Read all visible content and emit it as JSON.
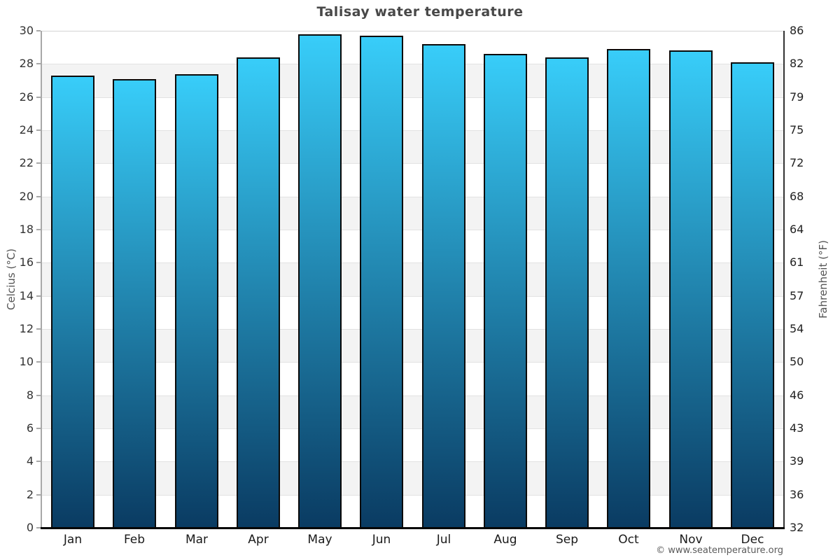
{
  "chart_data": {
    "type": "bar",
    "title": "Talisay water temperature",
    "categories": [
      "Jan",
      "Feb",
      "Mar",
      "Apr",
      "May",
      "Jun",
      "Jul",
      "Aug",
      "Sep",
      "Oct",
      "Nov",
      "Dec"
    ],
    "values": [
      27.3,
      27.1,
      27.4,
      28.4,
      29.8,
      29.7,
      29.2,
      28.6,
      28.4,
      28.9,
      28.8,
      28.1
    ],
    "unit": "°C",
    "ylabel_left": "Celcius (°C)",
    "ylabel_right": "Fahrenheit (°F)",
    "ylim": [
      0,
      30
    ],
    "ytick_step": 2,
    "yticks_celsius": [
      30,
      28,
      26,
      24,
      22,
      20,
      18,
      16,
      14,
      12,
      10,
      8,
      6,
      4,
      2,
      0
    ],
    "yticks_fahrenheit": [
      86,
      82,
      79,
      75,
      72,
      68,
      64,
      61,
      57,
      54,
      50,
      46,
      43,
      39,
      36,
      32
    ],
    "grid": "alternating horizontal bands every 2 degrees, white and light gray",
    "legend_position": "none",
    "colors": {
      "bar_gradient_top": "#38CDF9",
      "bar_gradient_bottom": "#0A3B62",
      "bar_border": "#0a0a0a",
      "band_gray": "#f3f3f3",
      "band_white": "#ffffff",
      "gridline": "#e2e2e2",
      "axis_left": "#a8a8a8",
      "axis_right": "#333333",
      "baseline": "#000000",
      "title_text": "#484848"
    },
    "footer": "© www.seatemperature.org"
  }
}
